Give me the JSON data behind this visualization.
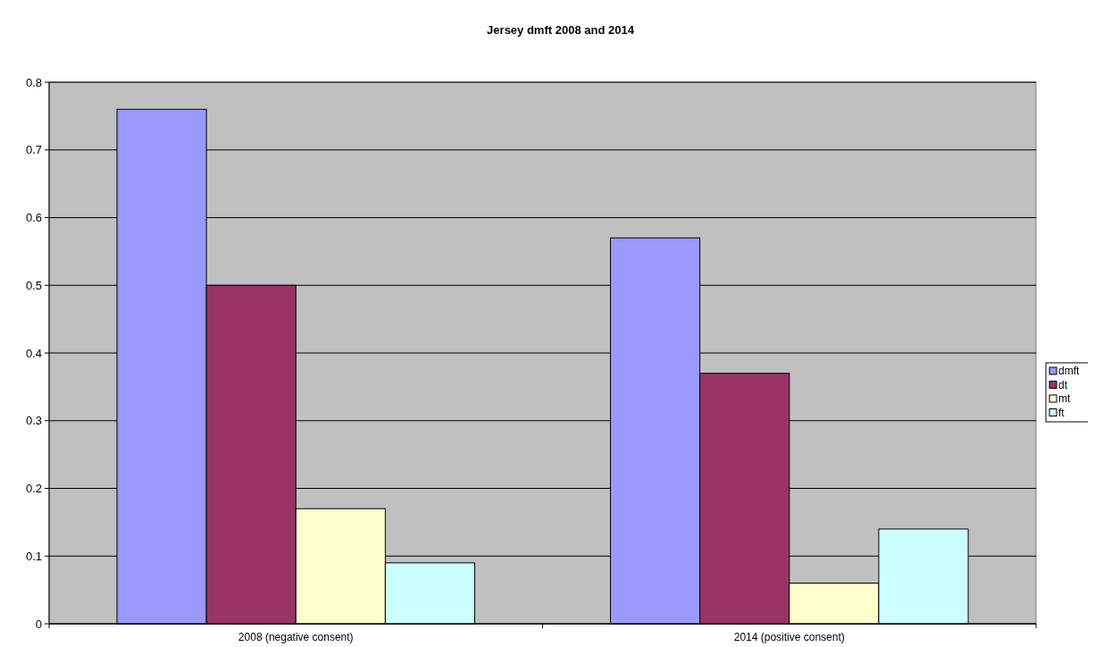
{
  "chart_data": {
    "type": "bar",
    "title": "Jersey dmft 2008 and 2014",
    "categories": [
      "2008 (negative consent)",
      "2014 (positive consent)"
    ],
    "series": [
      {
        "name": "dmft",
        "color": "#9999ff",
        "values": [
          0.76,
          0.57
        ]
      },
      {
        "name": "dt",
        "color": "#993366",
        "values": [
          0.5,
          0.37
        ]
      },
      {
        "name": "mt",
        "color": "#ffffcc",
        "values": [
          0.17,
          0.06
        ]
      },
      {
        "name": "ft",
        "color": "#ccffff",
        "values": [
          0.09,
          0.14
        ]
      }
    ],
    "ylim": [
      0,
      0.8
    ],
    "yticks": [
      0,
      0.1,
      0.2,
      0.3,
      0.4,
      0.5,
      0.6,
      0.7,
      0.8
    ],
    "grid": "y",
    "legend": "right"
  }
}
